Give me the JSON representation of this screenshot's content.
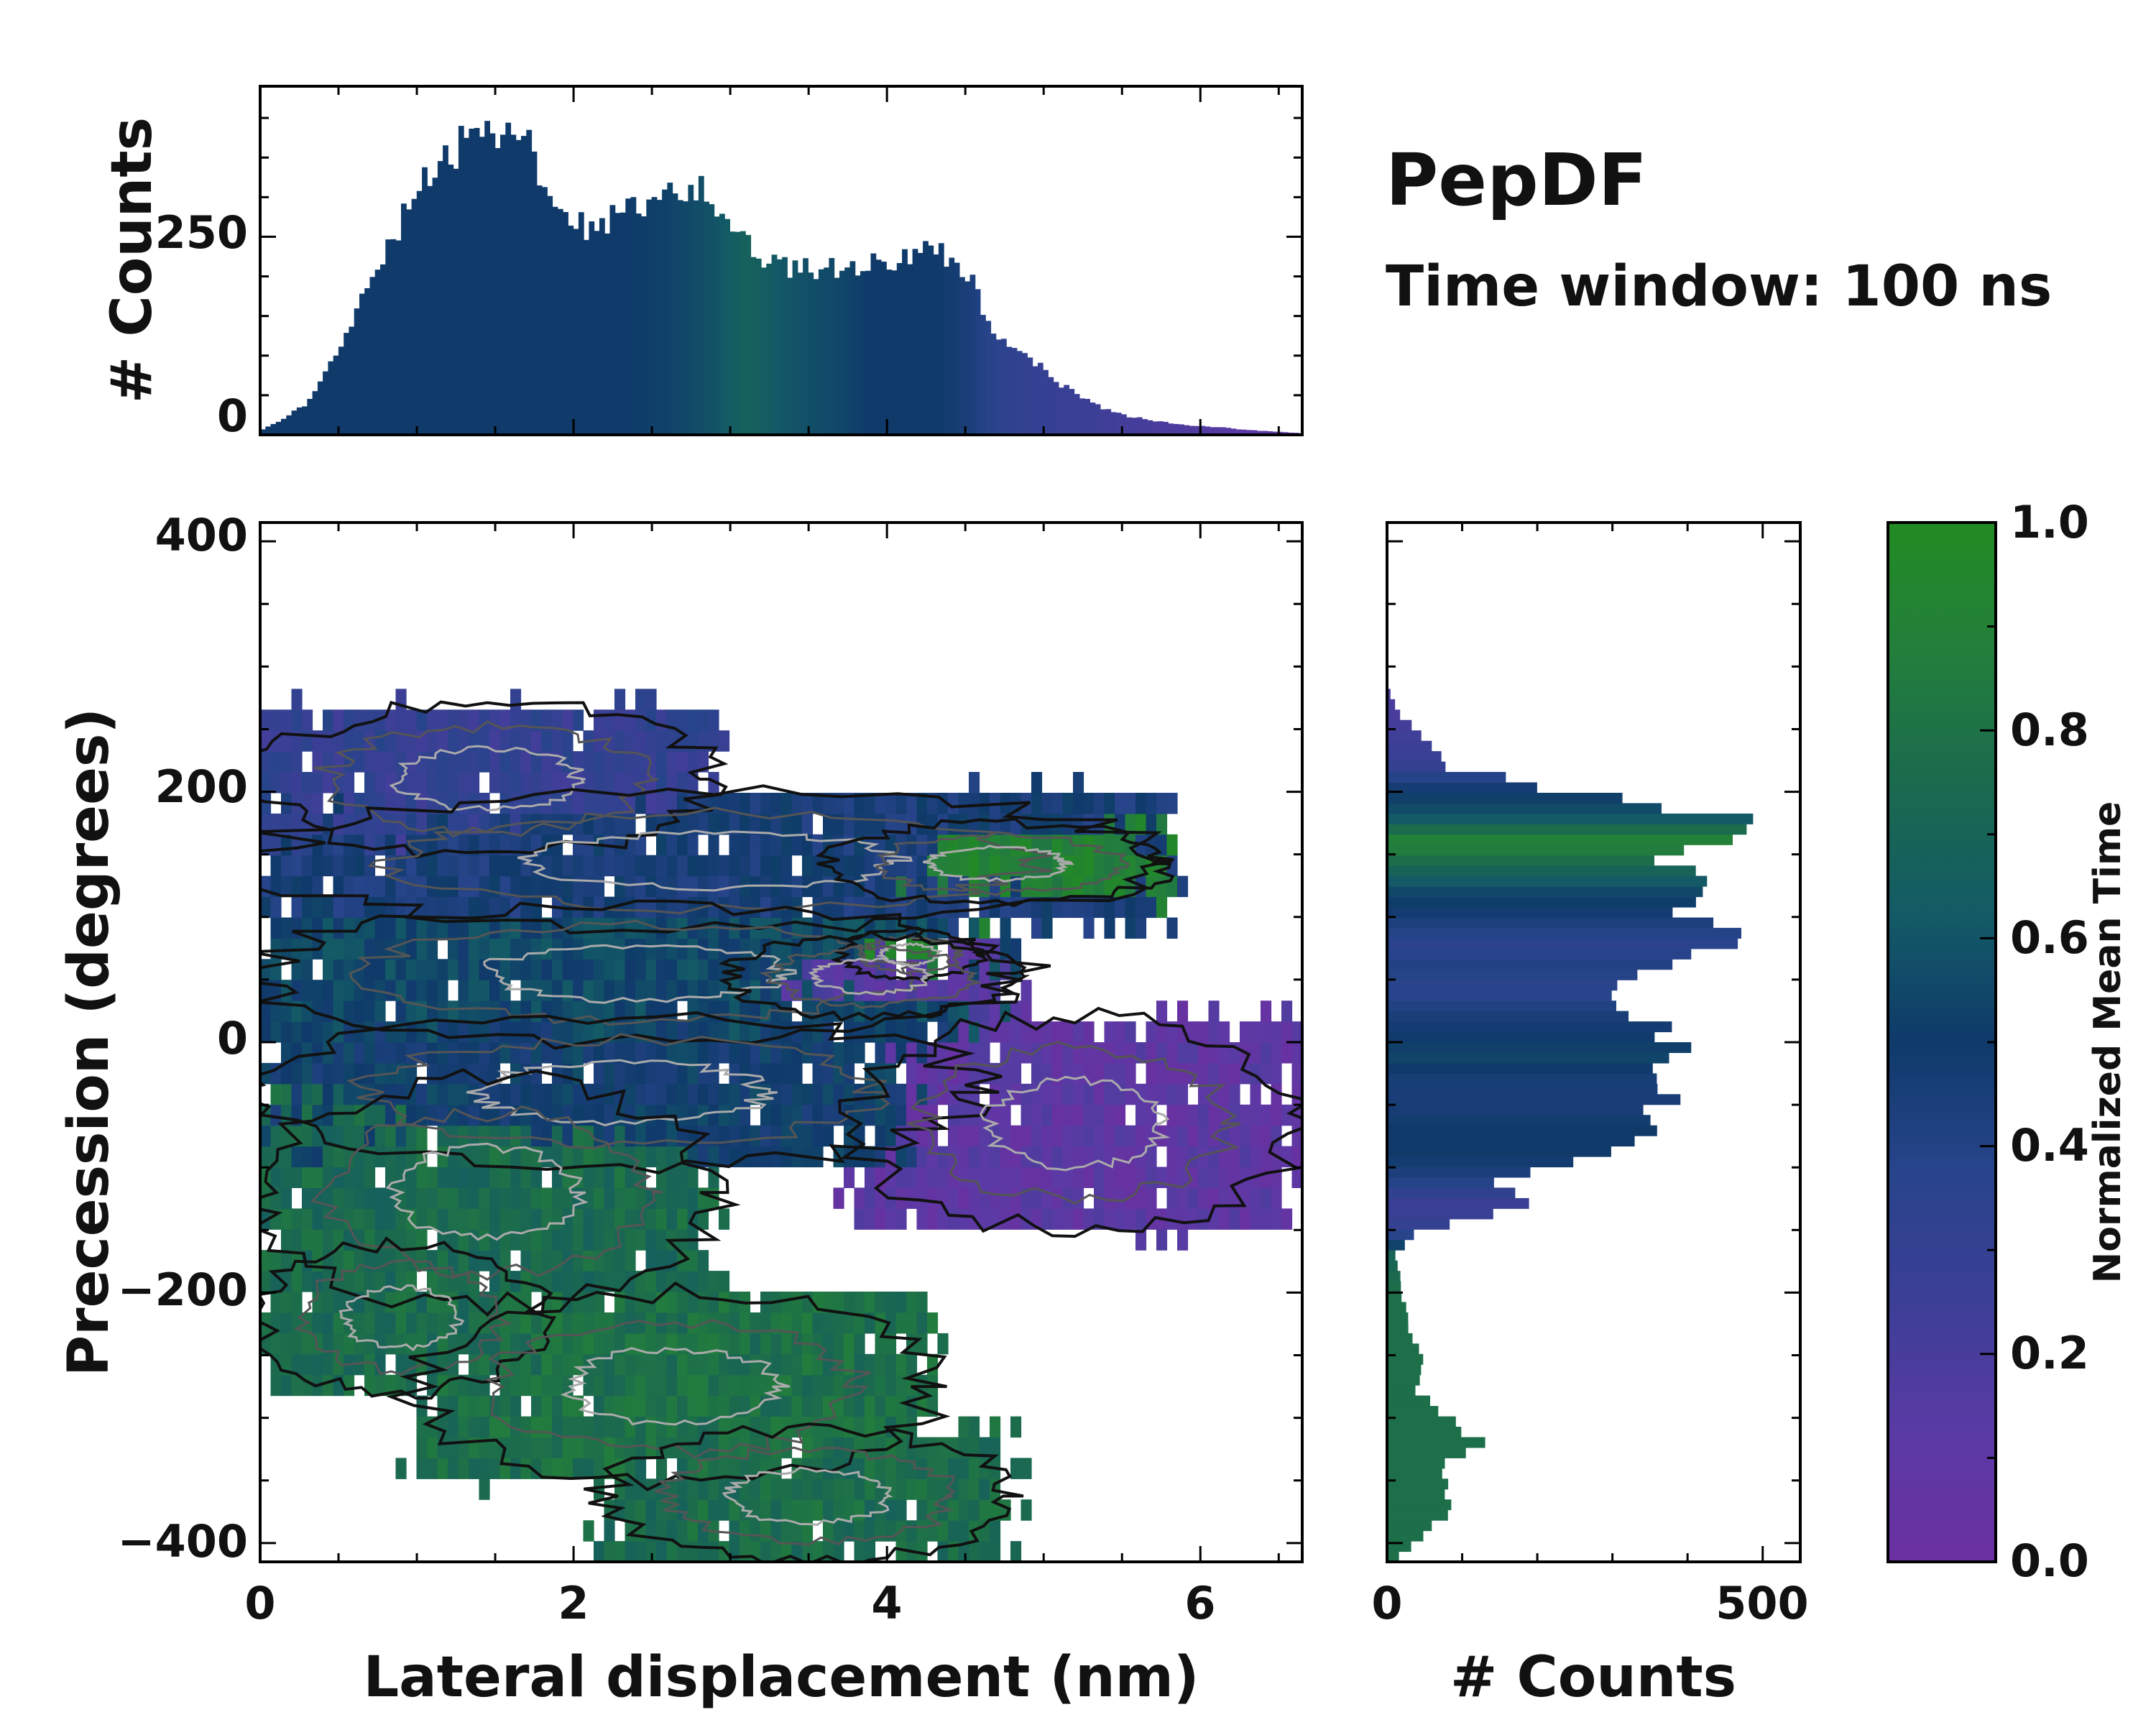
{
  "chart_data": {
    "type": "heatmap",
    "title": "PepDF",
    "subtitle": "Time window: 100 ns",
    "main": {
      "xlabel": "Lateral displacement (nm)",
      "ylabel": "Precession (degrees)",
      "xlim": [
        0,
        6.65
      ],
      "ylim": [
        -415,
        415
      ],
      "xticks": [
        0,
        2,
        4,
        6
      ],
      "yticks": [
        -400,
        -200,
        0,
        200,
        400
      ],
      "xtick_labels": [
        "0",
        "2",
        "4",
        "6"
      ],
      "ytick_labels": [
        "−400",
        "−200",
        "0",
        "200",
        "400"
      ],
      "regions": [
        {
          "name": "upper-purple-band",
          "x": [
            0.0,
            2.9
          ],
          "y": [
            150,
            270
          ],
          "value": 0.3
        },
        {
          "name": "upper-mixed-band",
          "x": [
            0.0,
            5.8
          ],
          "y": [
            90,
            200
          ],
          "value": 0.45
        },
        {
          "name": "upper-green-tail",
          "x": [
            3.6,
            5.8
          ],
          "y": [
            110,
            175
          ],
          "value": 0.9
        },
        {
          "name": "middle-dark-band",
          "x": [
            0.0,
            4.8
          ],
          "y": [
            0,
            110
          ],
          "value": 0.55
        },
        {
          "name": "middle-green-patch",
          "x": [
            3.7,
            4.6
          ],
          "y": [
            50,
            90
          ],
          "value": 0.92
        },
        {
          "name": "middle-purple-patch",
          "x": [
            3.0,
            4.8
          ],
          "y": [
            20,
            85
          ],
          "value": 0.15
        },
        {
          "name": "lower-blue-band",
          "x": [
            0.0,
            4.6
          ],
          "y": [
            -100,
            20
          ],
          "value": 0.5
        },
        {
          "name": "lower-purple-tail",
          "x": [
            3.8,
            6.6
          ],
          "y": [
            -150,
            20
          ],
          "value": 0.1
        },
        {
          "name": "green-arm-upper",
          "x": [
            0.0,
            2.9
          ],
          "y": [
            -210,
            -30
          ],
          "value": 0.75
        },
        {
          "name": "green-arm-lower-left",
          "x": [
            0.0,
            1.8
          ],
          "y": [
            -280,
            -160
          ],
          "value": 0.75
        },
        {
          "name": "green-arm-lower",
          "x": [
            1.0,
            4.3
          ],
          "y": [
            -350,
            -200
          ],
          "value": 0.78
        },
        {
          "name": "green-arm-bottom",
          "x": [
            2.2,
            4.8
          ],
          "y": [
            -415,
            -310
          ],
          "value": 0.76
        }
      ]
    },
    "top_histogram": {
      "ylabel": "# Counts",
      "ylim": [
        0,
        440
      ],
      "yticks": [
        0,
        250
      ],
      "ytick_labels": [
        "0",
        "250"
      ],
      "bin_width": 0.0333,
      "profile_x": [
        0,
        0.15,
        0.3,
        0.5,
        0.7,
        0.9,
        1.1,
        1.3,
        1.5,
        1.7,
        1.9,
        2.1,
        2.3,
        2.5,
        2.7,
        2.9,
        3.1,
        3.3,
        3.5,
        3.7,
        3.9,
        4.1,
        4.3,
        4.5,
        4.7,
        4.9,
        5.1,
        5.3,
        5.5,
        5.7,
        5.9,
        6.1,
        6.3,
        6.5,
        6.65
      ],
      "profile_counts": [
        5,
        20,
        40,
        110,
        190,
        270,
        335,
        370,
        380,
        365,
        300,
        260,
        280,
        300,
        315,
        300,
        240,
        215,
        210,
        210,
        215,
        225,
        235,
        210,
        120,
        100,
        65,
        40,
        25,
        18,
        12,
        10,
        6,
        4,
        2
      ],
      "profile_colors": [
        0.5,
        0.5,
        0.5,
        0.5,
        0.5,
        0.5,
        0.5,
        0.5,
        0.5,
        0.5,
        0.5,
        0.5,
        0.5,
        0.52,
        0.55,
        0.6,
        0.68,
        0.62,
        0.58,
        0.55,
        0.5,
        0.5,
        0.5,
        0.45,
        0.35,
        0.3,
        0.28,
        0.25,
        0.22,
        0.2,
        0.18,
        0.15,
        0.12,
        0.1,
        0.1
      ]
    },
    "right_histogram": {
      "xlabel": "# Counts",
      "xlim": [
        0,
        550
      ],
      "xticks": [
        0,
        500
      ],
      "xtick_labels": [
        "0",
        "500"
      ],
      "bin_width": 8.3,
      "profile_y": [
        -415,
        -390,
        -370,
        -340,
        -320,
        -300,
        -280,
        -250,
        -230,
        -200,
        -170,
        -150,
        -130,
        -110,
        -90,
        -70,
        -50,
        -30,
        -10,
        0,
        20,
        40,
        60,
        80,
        100,
        120,
        140,
        160,
        180,
        200,
        220,
        240,
        260,
        275
      ],
      "profile_counts": [
        10,
        55,
        90,
        70,
        130,
        80,
        40,
        45,
        30,
        20,
        12,
        45,
        200,
        140,
        270,
        340,
        370,
        350,
        410,
        400,
        350,
        310,
        380,
        460,
        410,
        420,
        380,
        420,
        460,
        240,
        80,
        50,
        20,
        5
      ],
      "profile_colors": [
        0.78,
        0.78,
        0.78,
        0.78,
        0.78,
        0.78,
        0.78,
        0.78,
        0.78,
        0.78,
        0.7,
        0.3,
        0.25,
        0.4,
        0.5,
        0.5,
        0.45,
        0.45,
        0.55,
        0.5,
        0.45,
        0.35,
        0.4,
        0.35,
        0.45,
        0.55,
        0.72,
        0.92,
        0.6,
        0.5,
        0.3,
        0.25,
        0.2,
        0.2
      ]
    },
    "colorbar": {
      "label": "Normalized Mean Time",
      "range": [
        0.0,
        1.0
      ],
      "ticks": [
        0.0,
        0.2,
        0.4,
        0.6,
        0.8,
        1.0
      ],
      "tick_labels": [
        "0.0",
        "0.2",
        "0.4",
        "0.6",
        "0.8",
        "1.0"
      ],
      "colormap_stops": [
        "#6a2fa0",
        "#5b3aa5",
        "#3c3f96",
        "#27448a",
        "#0f3a6a",
        "#135a66",
        "#1b6a4e",
        "#237f3b",
        "#228b22"
      ]
    }
  }
}
